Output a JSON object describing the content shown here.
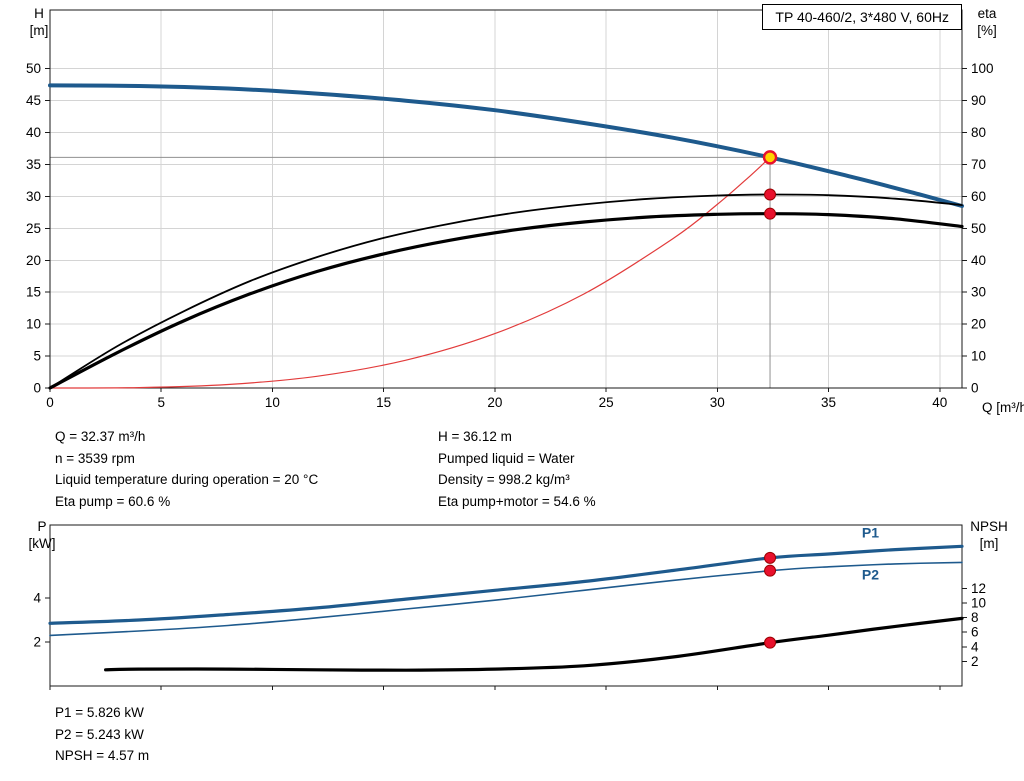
{
  "title_box": {
    "label": "TP 40-460/2, 3*480 V, 60Hz"
  },
  "colors": {
    "curve_blue": "#1e5a8d",
    "curve_black": "#000000",
    "curve_red": "#e23b3b",
    "marker_red": "#e8112d",
    "marker_edge": "#9b0000",
    "duty_fill": "#ffd400",
    "grid": "#d4d4d4",
    "crosshair": "#909090",
    "frame": "#1a1a1a"
  },
  "axis_titles": {
    "h": [
      "H",
      "[m]"
    ],
    "eta": [
      "eta",
      "[%]"
    ],
    "q": "Q [m³/h]",
    "p": [
      "P",
      "[kW]"
    ],
    "npsh": [
      "NPSH",
      "[m]"
    ]
  },
  "info_top": {
    "left": [
      "Q = 32.37 m³/h",
      "n = 3539 rpm",
      "Liquid temperature during operation = 20 °C",
      "Eta pump = 60.6 %"
    ],
    "right": [
      "H = 36.12 m",
      "Pumped liquid = Water",
      "Density = 998.2 kg/m³",
      "Eta pump+motor = 54.6 %"
    ]
  },
  "info_bottom": [
    "P1 = 5.826 kW",
    "P2 = 5.243 kW",
    "NPSH = 4.57 m"
  ],
  "chart_data": [
    {
      "id": "qh",
      "type": "line",
      "title": "TP 40-460/2, 3*480 V, 60Hz",
      "grid": true,
      "x_axis": {
        "label": "Q [m³/h]",
        "range": [
          0,
          41
        ],
        "ticks": [
          0,
          5,
          10,
          15,
          20,
          25,
          30,
          35,
          40
        ]
      },
      "y_left": {
        "label": "H [m]",
        "range": [
          0,
          59.2
        ],
        "ticks": [
          0,
          5,
          10,
          15,
          20,
          25,
          30,
          35,
          40,
          45,
          50
        ]
      },
      "y_right": {
        "label": "eta [%]",
        "range": [
          0,
          118.4
        ],
        "ticks": [
          0,
          10,
          20,
          30,
          40,
          50,
          60,
          70,
          80,
          90,
          100
        ]
      },
      "duty_point": {
        "q": 32.37,
        "h": 36.12
      },
      "series": [
        {
          "name": "system-curve",
          "axis": "left",
          "color": "#e23b3b",
          "width": 1.2,
          "points": [
            [
              0,
              0
            ],
            [
              4,
              0.07
            ],
            [
              8,
              0.55
            ],
            [
              12,
              1.84
            ],
            [
              16,
              4.36
            ],
            [
              20,
              8.52
            ],
            [
              24,
              14.72
            ],
            [
              28,
              23.38
            ],
            [
              30,
              28.75
            ],
            [
              31.5,
              33.3
            ],
            [
              32.37,
              36.12
            ]
          ]
        },
        {
          "name": "head-curve",
          "axis": "left",
          "color": "#1e5a8d",
          "width": 4,
          "points": [
            [
              0,
              47.4
            ],
            [
              4,
              47.3
            ],
            [
              8,
              46.9
            ],
            [
              12,
              46.1
            ],
            [
              16,
              45.0
            ],
            [
              20,
              43.5
            ],
            [
              24,
              41.5
            ],
            [
              28,
              39.2
            ],
            [
              32.37,
              36.12
            ],
            [
              36,
              33.1
            ],
            [
              39,
              30.4
            ],
            [
              41,
              28.5
            ]
          ]
        },
        {
          "name": "eta-pump-curve",
          "axis": "right",
          "color": "#000000",
          "width": 1.8,
          "points": [
            [
              0,
              0
            ],
            [
              3,
              13
            ],
            [
              6,
              24
            ],
            [
              9,
              33.5
            ],
            [
              12,
              41
            ],
            [
              15,
              47
            ],
            [
              18,
              51.5
            ],
            [
              21,
              55
            ],
            [
              24,
              57.5
            ],
            [
              27,
              59.3
            ],
            [
              30,
              60.3
            ],
            [
              32.37,
              60.6
            ],
            [
              35,
              60.4
            ],
            [
              38,
              59.3
            ],
            [
              41,
              57.3
            ]
          ]
        },
        {
          "name": "eta-pump-motor-curve",
          "axis": "right",
          "color": "#000000",
          "width": 3.2,
          "points": [
            [
              0,
              0
            ],
            [
              3,
              11
            ],
            [
              6,
              21
            ],
            [
              9,
              29.5
            ],
            [
              12,
              36.5
            ],
            [
              15,
              42
            ],
            [
              18,
              46.3
            ],
            [
              21,
              49.6
            ],
            [
              24,
              52
            ],
            [
              27,
              53.6
            ],
            [
              30,
              54.4
            ],
            [
              32.37,
              54.6
            ],
            [
              35,
              54.3
            ],
            [
              38,
              53
            ],
            [
              41,
              50.6
            ]
          ]
        }
      ],
      "markers": [
        {
          "q": 32.37,
          "value": 60.6,
          "axis": "right"
        },
        {
          "q": 32.37,
          "value": 54.6,
          "axis": "right"
        }
      ]
    },
    {
      "id": "power",
      "type": "line",
      "grid": false,
      "x_axis": {
        "label": "",
        "range": [
          0,
          41
        ],
        "ticks": [
          0,
          5,
          10,
          15,
          20,
          25,
          30,
          35,
          40
        ]
      },
      "y_left": {
        "label": "P [kW]",
        "range": [
          0,
          7.32
        ],
        "ticks": [
          2,
          4
        ]
      },
      "y_right": {
        "label": "NPSH [m]",
        "range": [
          -1.37,
          20.7
        ],
        "ticks": [
          2,
          4,
          6,
          8,
          10,
          12
        ]
      },
      "series": [
        {
          "name": "p1-curve",
          "axis": "left",
          "color": "#1e5a8d",
          "width": 3.2,
          "label": "P1",
          "label_at": [
            36.5,
            6.75
          ],
          "points": [
            [
              0,
              2.85
            ],
            [
              4,
              3.0
            ],
            [
              8,
              3.25
            ],
            [
              12,
              3.55
            ],
            [
              16,
              3.95
            ],
            [
              20,
              4.35
            ],
            [
              24,
              4.75
            ],
            [
              28,
              5.25
            ],
            [
              32.37,
              5.826
            ],
            [
              35,
              6.0
            ],
            [
              38,
              6.2
            ],
            [
              41,
              6.35
            ]
          ]
        },
        {
          "name": "p2-curve",
          "axis": "left",
          "color": "#1e5a8d",
          "width": 1.6,
          "label": "P2",
          "label_at": [
            36.5,
            4.85
          ],
          "points": [
            [
              0,
              2.3
            ],
            [
              4,
              2.5
            ],
            [
              8,
              2.75
            ],
            [
              12,
              3.1
            ],
            [
              16,
              3.5
            ],
            [
              20,
              3.9
            ],
            [
              24,
              4.35
            ],
            [
              28,
              4.8
            ],
            [
              32.37,
              5.243
            ],
            [
              35,
              5.42
            ],
            [
              38,
              5.55
            ],
            [
              41,
              5.62
            ]
          ]
        },
        {
          "name": "npsh-curve",
          "axis": "right",
          "color": "#000000",
          "width": 3.2,
          "points": [
            [
              2.5,
              0.85
            ],
            [
              4,
              0.95
            ],
            [
              8,
              0.95
            ],
            [
              12,
              0.85
            ],
            [
              16,
              0.8
            ],
            [
              20,
              0.95
            ],
            [
              24,
              1.4
            ],
            [
              28,
              2.6
            ],
            [
              32.37,
              4.57
            ],
            [
              35,
              5.6
            ],
            [
              38,
              6.8
            ],
            [
              41,
              7.9
            ]
          ]
        }
      ],
      "markers": [
        {
          "q": 32.37,
          "value": 5.826,
          "axis": "left"
        },
        {
          "q": 32.37,
          "value": 5.243,
          "axis": "left"
        },
        {
          "q": 32.37,
          "value": 4.57,
          "axis": "right"
        }
      ]
    }
  ]
}
